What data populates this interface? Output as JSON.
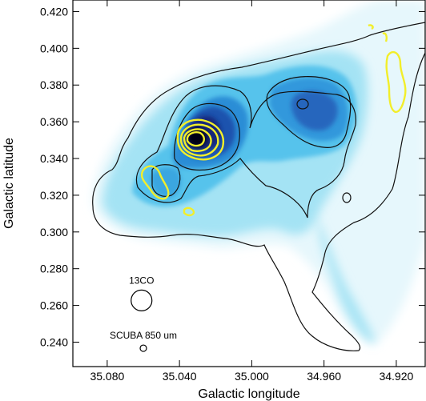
{
  "chart_data": {
    "type": "heatmap",
    "xlabel": "Galactic longitude",
    "ylabel": "Galactic latitude",
    "x_ticks": [
      "35.080",
      "35.040",
      "35.000",
      "34.960",
      "34.920"
    ],
    "y_ticks": [
      "0.420",
      "0.400",
      "0.380",
      "0.360",
      "0.340",
      "0.320",
      "0.300",
      "0.280",
      "0.260",
      "0.240"
    ],
    "x_tick_values": [
      35.08,
      35.04,
      35.0,
      34.96,
      34.92
    ],
    "y_tick_values": [
      0.42,
      0.4,
      0.38,
      0.36,
      0.34,
      0.32,
      0.3,
      0.28,
      0.26,
      0.24
    ],
    "xlim": [
      35.099,
      34.904
    ],
    "ylim": [
      0.2267,
      0.4263
    ],
    "x_reversed": true,
    "colormap": [
      "#e8f8fd",
      "#9fe3f4",
      "#52c3ec",
      "#2a8bd6",
      "#1e50ad",
      "#142676",
      "#050514"
    ],
    "contour_colors": {
      "map": "#111111",
      "overlay": "#f2ee2a"
    },
    "beams": [
      {
        "label": "13CO",
        "l": 35.061,
        "b": 0.2627,
        "size": "large"
      },
      {
        "label": "SCUBA 850 um",
        "l": 35.06,
        "b": 0.2367,
        "size": "small"
      }
    ]
  }
}
